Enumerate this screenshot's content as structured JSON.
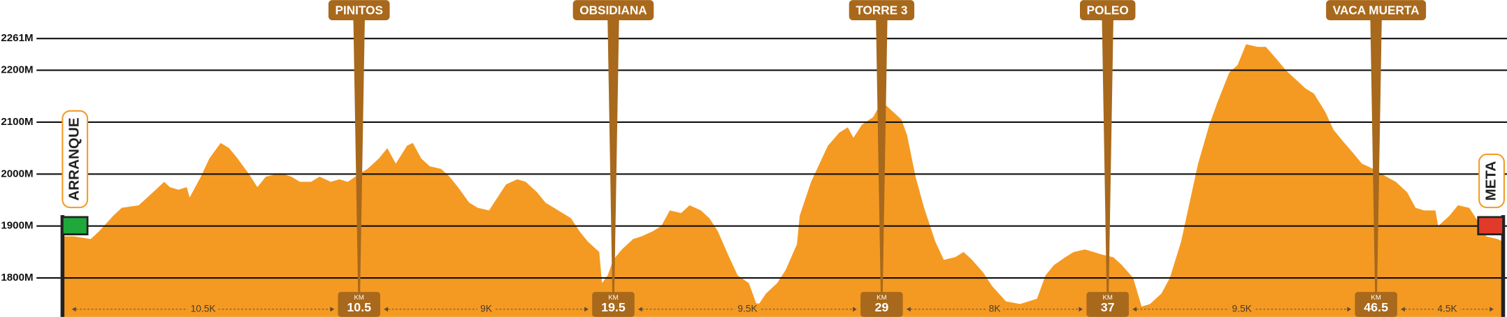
{
  "chart_data": {
    "type": "area",
    "color": "#f49a22",
    "start_label": "ARRANQUE",
    "end_label": "META",
    "km_label": "KM",
    "xlim": [
      0,
      51
    ],
    "ylim": [
      1725,
      2335
    ],
    "yticks": [
      {
        "value": 1800,
        "label": "1800M"
      },
      {
        "value": 1900,
        "label": "1900M"
      },
      {
        "value": 2000,
        "label": "2000M"
      },
      {
        "value": 2100,
        "label": "2100M"
      },
      {
        "value": 2200,
        "label": "2200M"
      },
      {
        "value": 2261,
        "label": "2261M"
      }
    ],
    "grid": true,
    "x": [
      0,
      0.4,
      1.0,
      1.3,
      1.8,
      2.1,
      2.7,
      3.0,
      3.3,
      3.6,
      3.8,
      4.1,
      4.4,
      4.5,
      4.9,
      5.2,
      5.6,
      5.9,
      6.2,
      6.6,
      6.9,
      7.2,
      7.6,
      7.8,
      8.1,
      8.4,
      8.8,
      9.1,
      9.5,
      9.8,
      10.1,
      10.5,
      10.8,
      11.2,
      11.5,
      11.8,
      12.2,
      12.4,
      12.7,
      13.0,
      13.4,
      13.7,
      14.0,
      14.4,
      14.7,
      15.1,
      15.4,
      15.7,
      16.1,
      16.4,
      16.8,
      17.1,
      17.4,
      18.0,
      18.3,
      18.6,
      19.0,
      19.1,
      19.3,
      19.5,
      19.8,
      20.2,
      20.5,
      20.9,
      21.2,
      21.5,
      21.9,
      22.2,
      22.6,
      22.9,
      23.2,
      23.6,
      23.9,
      24.3,
      24.6,
      24.9,
      25.3,
      25.6,
      26.0,
      26.1,
      26.5,
      26.8,
      27.1,
      27.5,
      27.8,
      28.0,
      28.3,
      28.7,
      29.0,
      29.4,
      29.7,
      29.9,
      30.2,
      30.5,
      30.9,
      31.2,
      31.6,
      31.9,
      32.2,
      32.6,
      32.9,
      33.4,
      33.9,
      34.5,
      34.8,
      35.1,
      35.5,
      35.8,
      36.2,
      36.5,
      36.8,
      37.2,
      37.5,
      37.9,
      38.2,
      38.5,
      38.9,
      39.2,
      39.6,
      39.9,
      40.2,
      40.6,
      40.9,
      41.3,
      41.6,
      41.9,
      42.3,
      42.6,
      43.0,
      43.3,
      43.6,
      44.0,
      44.3,
      44.7,
      45.0,
      45.3,
      45.7,
      46.0,
      46.4,
      46.7,
      47.2,
      47.6,
      47.9,
      48.2,
      48.6,
      48.7,
      49.1,
      49.4,
      49.8,
      50.1,
      50.4,
      50.8,
      51
    ],
    "values": [
      1880,
      1880,
      1875,
      1890,
      1920,
      1935,
      1940,
      1955,
      1970,
      1985,
      1975,
      1970,
      1975,
      1955,
      1995,
      2030,
      2060,
      2050,
      2030,
      2000,
      1975,
      1995,
      2000,
      2000,
      1995,
      1985,
      1985,
      1995,
      1985,
      1990,
      1985,
      2000,
      2010,
      2030,
      2050,
      2020,
      2055,
      2060,
      2030,
      2015,
      2010,
      1995,
      1975,
      1945,
      1935,
      1930,
      1955,
      1980,
      1990,
      1985,
      1965,
      1945,
      1935,
      1915,
      1890,
      1870,
      1850,
      1790,
      1805,
      1835,
      1855,
      1875,
      1880,
      1890,
      1900,
      1930,
      1925,
      1940,
      1930,
      1915,
      1890,
      1840,
      1805,
      1790,
      1745,
      1770,
      1790,
      1815,
      1865,
      1920,
      1985,
      2020,
      2055,
      2080,
      2090,
      2070,
      2095,
      2110,
      2140,
      2120,
      2105,
      2075,
      1995,
      1935,
      1870,
      1835,
      1840,
      1850,
      1835,
      1810,
      1785,
      1755,
      1750,
      1760,
      1805,
      1825,
      1840,
      1850,
      1855,
      1850,
      1845,
      1840,
      1825,
      1800,
      1745,
      1750,
      1770,
      1800,
      1870,
      1945,
      2020,
      2095,
      2140,
      2195,
      2210,
      2250,
      2245,
      2245,
      2220,
      2200,
      2185,
      2165,
      2155,
      2120,
      2085,
      2065,
      2040,
      2020,
      2010,
      2000,
      1985,
      1965,
      1935,
      1930,
      1930,
      1900,
      1920,
      1940,
      1935,
      1910,
      1880,
      1875,
      1870
    ],
    "waypoints": [
      {
        "name": "PINITOS",
        "km": 10.5
      },
      {
        "name": "OBSIDIANA",
        "km": 19.5
      },
      {
        "name": "TORRE 3",
        "km": 29
      },
      {
        "name": "POLEO",
        "km": 37
      },
      {
        "name": "VACA MUERTA",
        "km": 46.5
      }
    ],
    "segments": [
      {
        "value": 10.5,
        "label": "10.5K"
      },
      {
        "value": 9,
        "label": "9K"
      },
      {
        "value": 9.5,
        "label": "9.5K"
      },
      {
        "value": 8,
        "label": "8K"
      },
      {
        "value": 9.5,
        "label": "9.5K"
      },
      {
        "value": 4.5,
        "label": "4.5K"
      }
    ]
  }
}
